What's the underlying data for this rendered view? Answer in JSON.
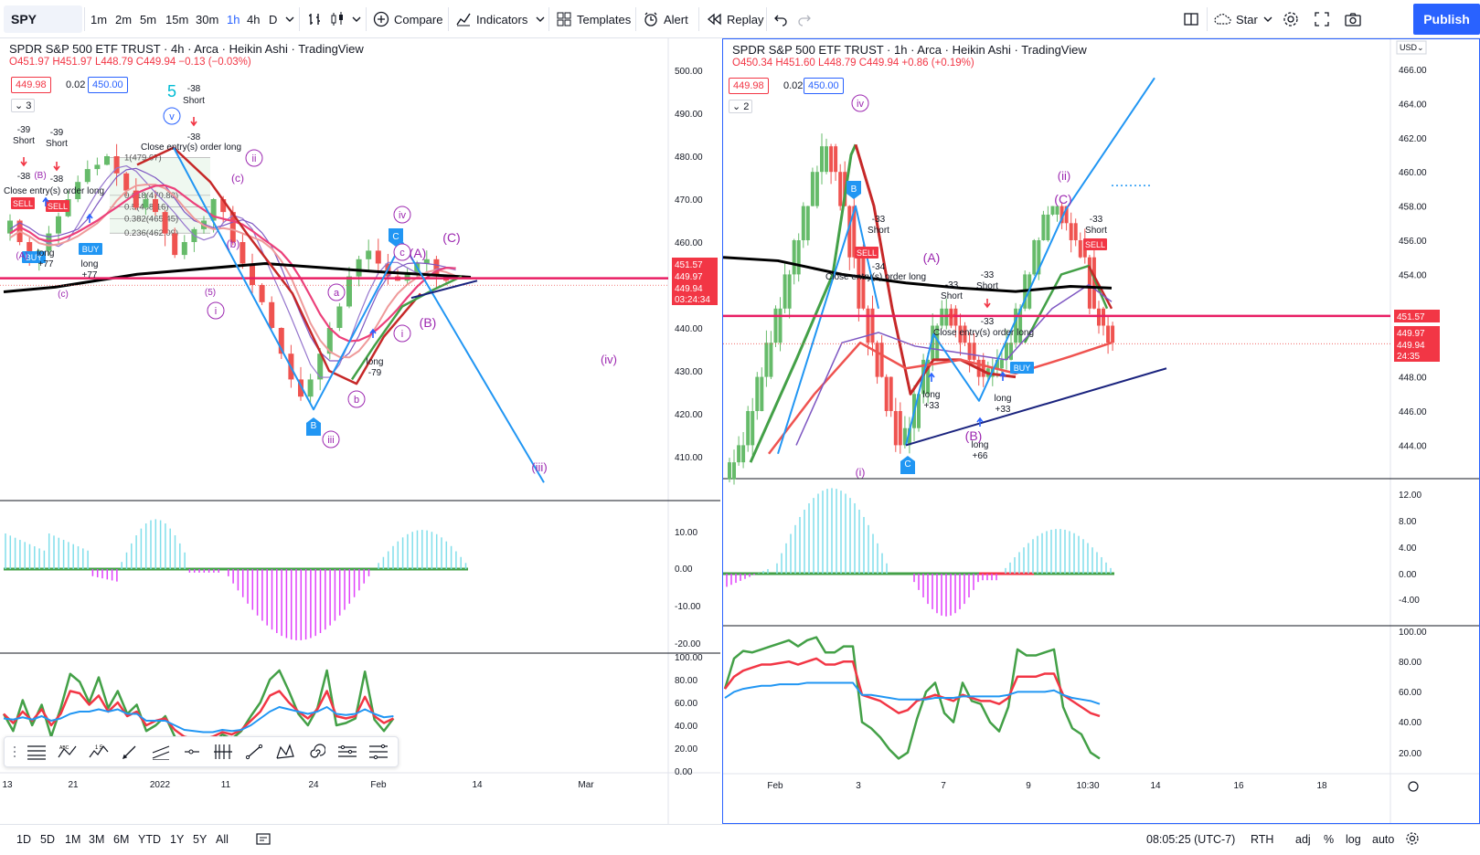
{
  "toolbar": {
    "symbol": "SPY",
    "timeframes": [
      "1m",
      "2m",
      "5m",
      "15m",
      "30m",
      "1h",
      "4h",
      "D"
    ],
    "active_timeframe": "1h",
    "compare_label": "Compare",
    "indicators_label": "Indicators",
    "templates_label": "Templates",
    "alert_label": "Alert",
    "replay_label": "Replay",
    "star_label": "Star",
    "publish_label": "Publish"
  },
  "left_chart": {
    "title": "SPDR S&P 500 ETF TRUST · 4h · Arca · Heikin Ashi · TradingView",
    "ohlc": "O451.97 H451.97 L448.79 C449.94 −0.13 (−0.03%)",
    "sell_price": "449.98",
    "spread": "0.02",
    "buy_price": "450.00",
    "indicator_count": "3",
    "price_axis": [
      "500.00",
      "490.00",
      "480.00",
      "470.00",
      "460.00",
      "440.00",
      "430.00",
      "420.00",
      "410.00"
    ],
    "price_tags": [
      {
        "text": "451.57",
        "color": "#f23645"
      },
      {
        "text": "449.97",
        "color": "#f23645"
      },
      {
        "text": "449.94",
        "color": "#f23645"
      },
      {
        "text": "03:24:34",
        "color": "#f23645"
      }
    ],
    "macd_axis": [
      "10.00",
      "0.00",
      "-10.00",
      "-20.00"
    ],
    "osc_axis": [
      "100.00",
      "80.00",
      "60.00",
      "40.00",
      "20.00",
      "0.00"
    ],
    "time_axis": [
      "13",
      "21",
      "2022",
      "11",
      "24",
      "Feb",
      "14",
      "Mar"
    ],
    "annotations": {
      "wave5": "5",
      "v": "v",
      "short_a": "-39",
      "short_b": "-39",
      "short_c": "-38",
      "short_label": "Short",
      "close_long": "Close entry(s) order long",
      "fib_1": "1(479.67)",
      "fib_618": "0.618(470.88)",
      "fib_5": "0.5(468.16)",
      "fib_382": "0.382(465.45)",
      "fib_236": "0.236(462.09)",
      "sell": "SELL",
      "buy": "BUY",
      "long": "long",
      "long_val": "+77",
      "long_val2": "-79",
      "c_paren": "(c)",
      "b_paren": "(b)",
      "ii": "ii",
      "i": "i",
      "iii": "iii",
      "iv": "iv",
      "iv_paren": "(iv)",
      "iii_paren": "(iii)",
      "A_paren": "(A)",
      "B_paren": "(B)",
      "C_paren": "(C)",
      "a": "a",
      "b": "b",
      "c": "c",
      "B_marker": "B",
      "C_marker": "C",
      "five_paren": "(5)",
      "A_small": "(A)",
      "B_small": "(B)"
    }
  },
  "right_chart": {
    "title": "SPDR S&P 500 ETF TRUST · 1h · Arca · Heikin Ashi · TradingView",
    "ohlc": "O450.34 H451.60 L448.79 C449.94 +0.86 (+0.19%)",
    "sell_price": "449.98",
    "spread": "0.02",
    "buy_price": "450.00",
    "indicator_count": "2",
    "currency": "USD",
    "price_axis": [
      "466.00",
      "464.00",
      "462.00",
      "460.00",
      "458.00",
      "456.00",
      "454.00",
      "448.00",
      "446.00",
      "444.00"
    ],
    "price_tags": [
      {
        "text": "451.57",
        "color": "#f23645"
      },
      {
        "text": "449.97",
        "color": "#f23645"
      },
      {
        "text": "449.94",
        "color": "#f23645"
      },
      {
        "text": "24:35",
        "color": "#f23645"
      }
    ],
    "macd_axis": [
      "12.00",
      "8.00",
      "4.00",
      "0.00",
      "-4.00"
    ],
    "osc_axis": [
      "100.00",
      "80.00",
      "60.00",
      "40.00",
      "20.00"
    ],
    "time_axis": [
      "Feb",
      "3",
      "7",
      "9",
      "10:30",
      "14",
      "16",
      "18"
    ],
    "annotations": {
      "iv": "iv",
      "B_marker": "B",
      "C_marker": "C",
      "short_val": "-33",
      "short_label": "Short",
      "sell": "SELL",
      "buy": "BUY",
      "close_long": "Close entry(s) order long",
      "A_paren": "(A)",
      "B_paren": "(B)",
      "C_paren": "(C)",
      "ii_paren": "(ii)",
      "i_paren": "(i)",
      "long": "long",
      "long_33": "+33",
      "long_66": "+66",
      "minus34": "-34"
    }
  },
  "bottom_bar": {
    "ranges": [
      "1D",
      "5D",
      "1M",
      "3M",
      "6M",
      "YTD",
      "1Y",
      "5Y",
      "All"
    ],
    "time": "08:05:25 (UTC-7)",
    "session": "RTH",
    "adj": "adj",
    "percent": "%",
    "log": "log",
    "auto": "auto"
  },
  "colors": {
    "accent": "#2962ff",
    "bull": "#4caf50",
    "bear": "#f23645",
    "wave": "#9c27b0",
    "trend": "#2196f3"
  }
}
